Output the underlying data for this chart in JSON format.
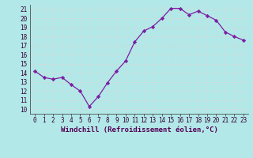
{
  "x": [
    0,
    1,
    2,
    3,
    4,
    5,
    6,
    7,
    8,
    9,
    10,
    11,
    12,
    13,
    14,
    15,
    16,
    17,
    18,
    19,
    20,
    21,
    22,
    23
  ],
  "y": [
    14.2,
    13.5,
    13.3,
    13.5,
    12.7,
    12.0,
    10.3,
    11.4,
    12.9,
    14.2,
    15.3,
    17.4,
    18.6,
    19.1,
    20.0,
    21.1,
    21.1,
    20.4,
    20.8,
    20.3,
    19.8,
    18.5,
    18.0,
    17.6
  ],
  "line_color": "#7b1fa2",
  "marker": "D",
  "marker_size": 2.2,
  "bg_color": "#b2e8e8",
  "grid_color": "#c8dede",
  "xlabel": "Windchill (Refroidissement éolien,°C)",
  "ylim": [
    9.5,
    21.5
  ],
  "xlim": [
    -0.5,
    23.5
  ],
  "yticks": [
    10,
    11,
    12,
    13,
    14,
    15,
    16,
    17,
    18,
    19,
    20,
    21
  ],
  "xticks": [
    0,
    1,
    2,
    3,
    4,
    5,
    6,
    7,
    8,
    9,
    10,
    11,
    12,
    13,
    14,
    15,
    16,
    17,
    18,
    19,
    20,
    21,
    22,
    23
  ],
  "tick_fontsize": 5.5,
  "xlabel_fontsize": 6.5
}
